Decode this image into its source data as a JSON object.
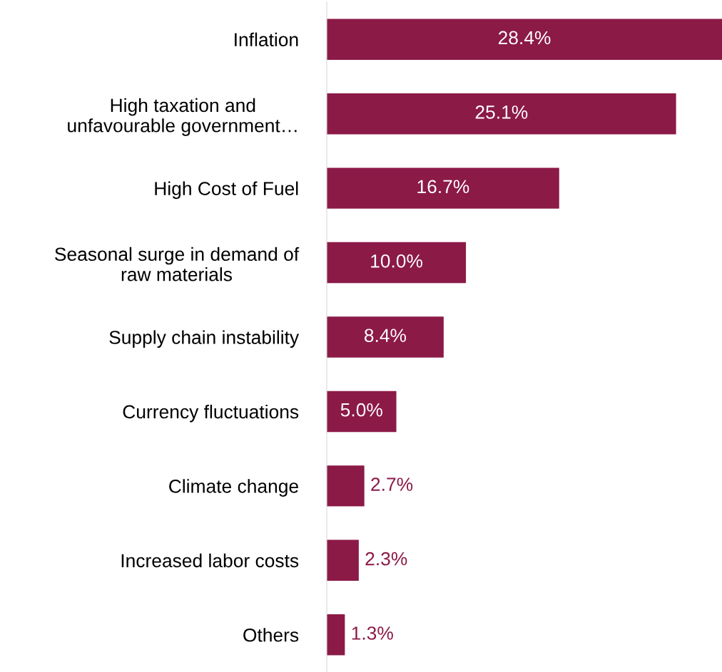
{
  "chart_data": {
    "type": "bar",
    "orientation": "horizontal",
    "categories": [
      "Inflation",
      "High taxation and\nunfavourable government…",
      "High Cost of Fuel",
      "Seasonal surge in demand of\nraw materials",
      "Supply chain instability",
      "Currency fluctuations",
      "Climate change",
      "Increased labor costs",
      "Others"
    ],
    "values": [
      28.4,
      25.1,
      16.7,
      10.0,
      8.4,
      5.0,
      2.7,
      2.3,
      1.3
    ],
    "value_labels": [
      "28.4%",
      "25.1%",
      "16.7%",
      "10.0%",
      "8.4%",
      "5.0%",
      "2.7%",
      "2.3%",
      "1.3%"
    ],
    "color": "#8b1a47",
    "grid": false,
    "legend": false
  }
}
